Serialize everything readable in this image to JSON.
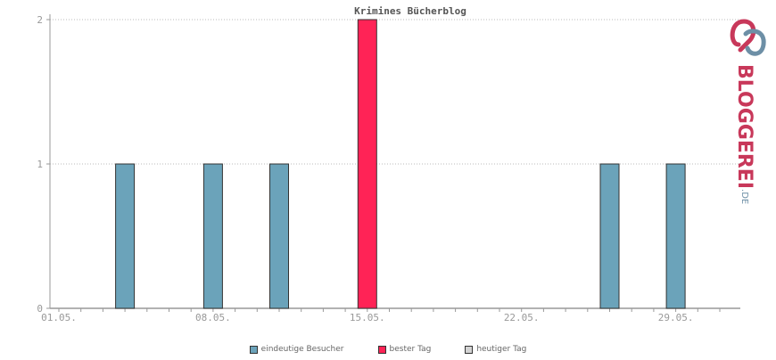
{
  "chart_data": {
    "type": "bar",
    "title": "Krimines Bücherblog",
    "xlabel": "",
    "ylabel": "",
    "ylim": [
      0,
      2
    ],
    "y_ticks": [
      "0",
      "1",
      "2"
    ],
    "x_tick_labels": [
      "01.05.",
      "08.05.",
      "15.05.",
      "22.05.",
      "29.05."
    ],
    "x_tick_days": [
      1,
      8,
      15,
      22,
      29
    ],
    "x_range_days": [
      0,
      31
    ],
    "grid": true,
    "legend_position": "bottom",
    "bars": [
      {
        "day": 4,
        "value": 1,
        "series": "eindeutige Besucher"
      },
      {
        "day": 8,
        "value": 1,
        "series": "eindeutige Besucher"
      },
      {
        "day": 11,
        "value": 1,
        "series": "eindeutige Besucher"
      },
      {
        "day": 15,
        "value": 2,
        "series": "bester Tag"
      },
      {
        "day": 26,
        "value": 1,
        "series": "eindeutige Besucher"
      },
      {
        "day": 29,
        "value": 1,
        "series": "eindeutige Besucher"
      }
    ],
    "series": [
      {
        "name": "eindeutige Besucher",
        "color": "#6ba3ba"
      },
      {
        "name": "bester Tag",
        "color": "#ff2356"
      },
      {
        "name": "heutiger Tag",
        "color": "#d3d3d3"
      }
    ]
  },
  "logo": {
    "text_main": "BLOGGEREI",
    "text_sub": ".DE",
    "color_main": "#c8385a",
    "color_sub": "#6d8fa6"
  }
}
